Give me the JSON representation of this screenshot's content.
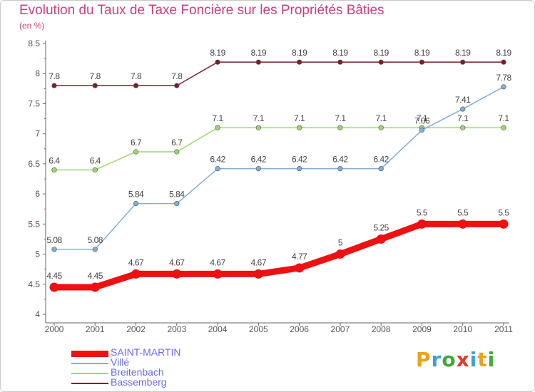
{
  "chart_data": {
    "type": "line",
    "title": "Evolution du Taux de Taxe Foncière sur les Propriétés Bâties",
    "unit_label": "(en %)",
    "xlabel": "",
    "ylabel": "",
    "x": [
      "2000",
      "2001",
      "2002",
      "2003",
      "2004",
      "2005",
      "2006",
      "2007",
      "2008",
      "2009",
      "2010",
      "2011"
    ],
    "ylim": [
      4,
      8.5
    ],
    "yticks": [
      4,
      4.5,
      5,
      5.5,
      6,
      6.5,
      7,
      7.5,
      8,
      8.5
    ],
    "ytick_labels": [
      "4",
      "4.5",
      "5",
      "5.5",
      "6",
      "6.5",
      "7",
      "7.5",
      "8",
      "8.5"
    ],
    "series": [
      {
        "name": "Bassemberg",
        "color": "#7a1f28",
        "values": [
          7.8,
          7.8,
          7.8,
          7.8,
          8.19,
          8.19,
          8.19,
          8.19,
          8.19,
          8.19,
          8.19,
          8.19
        ],
        "labels": [
          "7.8",
          "7.8",
          "7.8",
          "7.8",
          "8.19",
          "8.19",
          "8.19",
          "8.19",
          "8.19",
          "8.19",
          "8.19",
          "8.19"
        ]
      },
      {
        "name": "Breitenbach",
        "color": "#99d86a",
        "values": [
          6.4,
          6.4,
          6.7,
          6.7,
          7.1,
          7.1,
          7.1,
          7.1,
          7.1,
          7.1,
          7.1,
          7.1
        ],
        "labels": [
          "6.4",
          "6.4",
          "6.7",
          "6.7",
          "7.1",
          "7.1",
          "7.1",
          "7.1",
          "7.1",
          "7.1",
          "7.1",
          "7.1"
        ]
      },
      {
        "name": "Villé",
        "color": "#82aed4",
        "values": [
          5.08,
          5.08,
          5.84,
          5.84,
          6.42,
          6.42,
          6.42,
          6.42,
          6.42,
          7.06,
          7.41,
          7.78
        ],
        "labels": [
          "5.08",
          "5.08",
          "5.84",
          "5.84",
          "6.42",
          "6.42",
          "6.42",
          "6.42",
          "6.42",
          "7.06",
          "7.41",
          "7.78"
        ]
      },
      {
        "name": "SAINT-MARTIN",
        "color": "#ee1111",
        "values": [
          4.45,
          4.45,
          4.67,
          4.67,
          4.67,
          4.67,
          4.77,
          5,
          5.25,
          5.5,
          5.5,
          5.5
        ],
        "labels": [
          "4.45",
          "4.45",
          "4.67",
          "4.67",
          "4.67",
          "4.67",
          "4.77",
          "5",
          "5.25",
          "5.5",
          "5.5",
          "5.5"
        ]
      }
    ],
    "legend_order": [
      "SAINT-MARTIN",
      "Villé",
      "Breitenbach",
      "Bassemberg"
    ],
    "legend_position": "bottom-left",
    "grid": false
  },
  "logo": {
    "letters": [
      "P",
      "r",
      "o",
      "x",
      "i",
      "t",
      "i"
    ],
    "colors": [
      "#e8a317",
      "#3ba0d8",
      "#3fa83a",
      "#e23a2a",
      "#3ba0d8",
      "#e8a317",
      "#3fa83a"
    ]
  }
}
